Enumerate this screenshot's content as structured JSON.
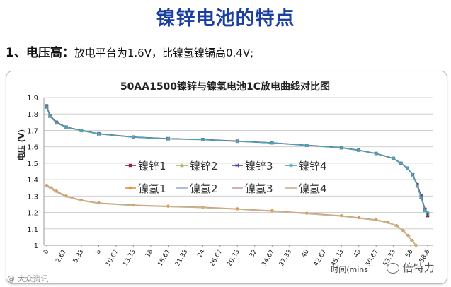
{
  "slide": {
    "title": "镍锌电池的特点",
    "point_number": "1、",
    "point_heading": "电压高：",
    "point_text": "放电平台为1.6V，比镍氢镍镉高0.4V;"
  },
  "chart_data": {
    "type": "line",
    "title": "50AA1500镍锌与镍氢电池1C放电曲线对比图",
    "ylabel": "电压 (V)",
    "xlabel": "时间(mins",
    "ylim": [
      1,
      1.9
    ],
    "yticks": [
      "1",
      "1.1",
      "1.2",
      "1.3",
      "1.4",
      "1.5",
      "1.6",
      "1.7",
      "1.8",
      "1.9"
    ],
    "xlim": [
      0,
      58.6
    ],
    "xticks": [
      "0",
      "2.67",
      "5.33",
      "8",
      "10.67",
      "13.33",
      "16",
      "18.67",
      "21.33",
      "24",
      "26.67",
      "29.33",
      "32",
      "34.67",
      "37.33",
      "40",
      "42.67",
      "45.33",
      "48",
      "50.67",
      "53.33",
      "56",
      "58.6"
    ],
    "legend_placement": "center-left",
    "series": [
      {
        "name": "镍锌1",
        "color": "#8b2a3c",
        "marker": "square",
        "x": [
          0,
          0.5,
          1.5,
          3,
          5.33,
          8,
          13.33,
          18.67,
          24,
          29.33,
          34.67,
          40,
          45.33,
          48,
          50.67,
          53.33,
          54.5,
          55.5,
          56.3,
          57,
          57.6,
          58.2,
          58.6
        ],
        "y": [
          1.85,
          1.79,
          1.75,
          1.72,
          1.7,
          1.68,
          1.66,
          1.65,
          1.645,
          1.635,
          1.625,
          1.61,
          1.595,
          1.58,
          1.56,
          1.53,
          1.5,
          1.47,
          1.43,
          1.37,
          1.3,
          1.22,
          1.18
        ]
      },
      {
        "name": "镍锌2",
        "color": "#9bbb59",
        "marker": "triangle",
        "x": [
          0,
          0.5,
          1.5,
          3,
          5.33,
          8,
          13.33,
          18.67,
          24,
          29.33,
          34.67,
          40,
          45.33,
          48,
          50.67,
          53.33,
          54.5,
          55.5,
          56.3,
          57,
          57.6,
          58.2,
          58.6
        ],
        "y": [
          1.84,
          1.785,
          1.745,
          1.718,
          1.698,
          1.678,
          1.658,
          1.648,
          1.643,
          1.633,
          1.623,
          1.608,
          1.593,
          1.578,
          1.558,
          1.528,
          1.498,
          1.468,
          1.428,
          1.36,
          1.29,
          1.21,
          1.19
        ]
      },
      {
        "name": "镍锌3",
        "color": "#5b3a86",
        "marker": "x",
        "x": [
          0,
          0.5,
          1.5,
          3,
          5.33,
          8,
          13.33,
          18.67,
          24,
          29.33,
          34.67,
          40,
          45.33,
          48,
          50.67,
          53.33,
          54.5,
          55.5,
          56.3,
          57,
          57.6,
          58.2,
          58.6
        ],
        "y": [
          1.845,
          1.788,
          1.748,
          1.72,
          1.7,
          1.679,
          1.659,
          1.649,
          1.644,
          1.634,
          1.624,
          1.609,
          1.594,
          1.579,
          1.559,
          1.529,
          1.499,
          1.469,
          1.429,
          1.365,
          1.295,
          1.215,
          1.185
        ]
      },
      {
        "name": "镍锌4",
        "color": "#4aa3c0",
        "marker": "star",
        "x": [
          0,
          0.5,
          1.5,
          3,
          5.33,
          8,
          13.33,
          18.67,
          24,
          29.33,
          34.67,
          40,
          45.33,
          48,
          50.67,
          53.33,
          54.5,
          55.5,
          56.3,
          57,
          57.6,
          58.2,
          58.6
        ],
        "y": [
          1.842,
          1.786,
          1.746,
          1.719,
          1.699,
          1.679,
          1.659,
          1.649,
          1.644,
          1.634,
          1.624,
          1.609,
          1.594,
          1.579,
          1.559,
          1.53,
          1.5,
          1.47,
          1.43,
          1.362,
          1.292,
          1.212,
          1.2
        ]
      },
      {
        "name": "镍氢1",
        "color": "#e69138",
        "marker": "circle",
        "x": [
          0,
          0.7,
          1.5,
          3,
          5.33,
          8,
          13.33,
          18.67,
          24,
          29.33,
          34.67,
          40,
          45.33,
          48,
          50.67,
          52.5,
          53.8,
          54.8,
          55.6,
          56.2,
          56.8
        ],
        "y": [
          1.365,
          1.35,
          1.33,
          1.3,
          1.275,
          1.258,
          1.245,
          1.238,
          1.232,
          1.222,
          1.21,
          1.195,
          1.18,
          1.168,
          1.155,
          1.14,
          1.12,
          1.09,
          1.06,
          1.03,
          1.0
        ]
      },
      {
        "name": "镍氢2",
        "color": "#95b3d7",
        "marker": "line",
        "x": [
          0,
          0.7,
          1.5,
          3,
          5.33,
          8,
          13.33,
          18.67,
          24,
          29.33,
          34.67,
          40,
          45.33,
          48,
          50.67,
          52.5,
          53.8,
          54.8,
          55.6,
          56.2,
          56.8
        ],
        "y": [
          1.36,
          1.345,
          1.325,
          1.297,
          1.273,
          1.256,
          1.243,
          1.236,
          1.23,
          1.22,
          1.208,
          1.193,
          1.178,
          1.166,
          1.153,
          1.138,
          1.118,
          1.088,
          1.058,
          1.028,
          1.0
        ]
      },
      {
        "name": "镍氢3",
        "color": "#c9a0a0",
        "marker": "line",
        "x": [
          0,
          0.7,
          1.5,
          3,
          5.33,
          8,
          13.33,
          18.67,
          24,
          29.33,
          34.67,
          40,
          45.33,
          48,
          50.67,
          52.5,
          53.8,
          54.8,
          55.6,
          56.2,
          56.8
        ],
        "y": [
          1.362,
          1.347,
          1.327,
          1.298,
          1.274,
          1.257,
          1.244,
          1.237,
          1.231,
          1.221,
          1.209,
          1.194,
          1.179,
          1.167,
          1.154,
          1.139,
          1.119,
          1.089,
          1.059,
          1.029,
          1.0
        ]
      },
      {
        "name": "镍氢4",
        "color": "#c4b58a",
        "marker": "line",
        "x": [
          0,
          0.7,
          1.5,
          3,
          5.33,
          8,
          13.33,
          18.67,
          24,
          29.33,
          34.67,
          40,
          45.33,
          48,
          50.67,
          52.5,
          53.8,
          54.8,
          55.6,
          56.2,
          56.8
        ],
        "y": [
          1.358,
          1.343,
          1.323,
          1.296,
          1.272,
          1.255,
          1.242,
          1.235,
          1.229,
          1.219,
          1.207,
          1.192,
          1.177,
          1.165,
          1.152,
          1.137,
          1.117,
          1.087,
          1.057,
          1.027,
          1.0
        ]
      }
    ]
  },
  "watermarks": {
    "left": "@ 大众资讯",
    "right": "倍特力"
  }
}
